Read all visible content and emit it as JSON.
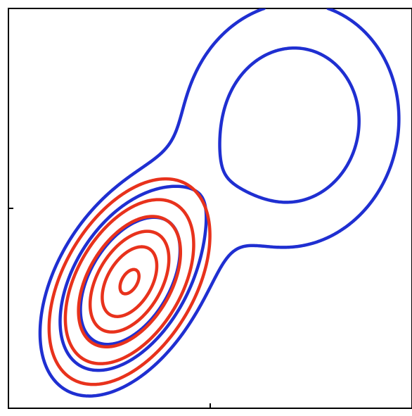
{
  "chart_data": {
    "type": "contour",
    "title": "",
    "xlabel": "",
    "ylabel": "",
    "xlim": [
      -3,
      3
    ],
    "ylim": [
      -3,
      3
    ],
    "x_ticks": [
      0
    ],
    "y_ticks": [
      0
    ],
    "grid": false,
    "legend": "none",
    "colors": {
      "mixture": "#1f2fd1",
      "component": "#e8321c"
    },
    "series": [
      {
        "color": "#1f2fd1",
        "components": [
          {
            "weight": 0.5,
            "mean": [
              -1.2,
              -1.1
            ],
            "sd": [
              0.62,
              0.8
            ],
            "rho": 0.45
          },
          {
            "weight": 0.5,
            "mean": [
              1.2,
              1.25
            ],
            "sd": [
              0.92,
              1.05
            ],
            "rho": 0.05
          }
        ],
        "levels": [
          0.018,
          0.045,
          0.09,
          0.2
        ]
      },
      {
        "color": "#e8321c",
        "components": [
          {
            "weight": 0.5,
            "mean": [
              -1.2,
              -1.1
            ],
            "sd": [
              0.62,
              0.8
            ],
            "rho": 0.45
          }
        ],
        "levels": [
          0.028,
          0.055,
          0.085,
          0.115,
          0.145,
          0.175,
          0.205,
          0.235,
          0.265
        ]
      }
    ]
  }
}
